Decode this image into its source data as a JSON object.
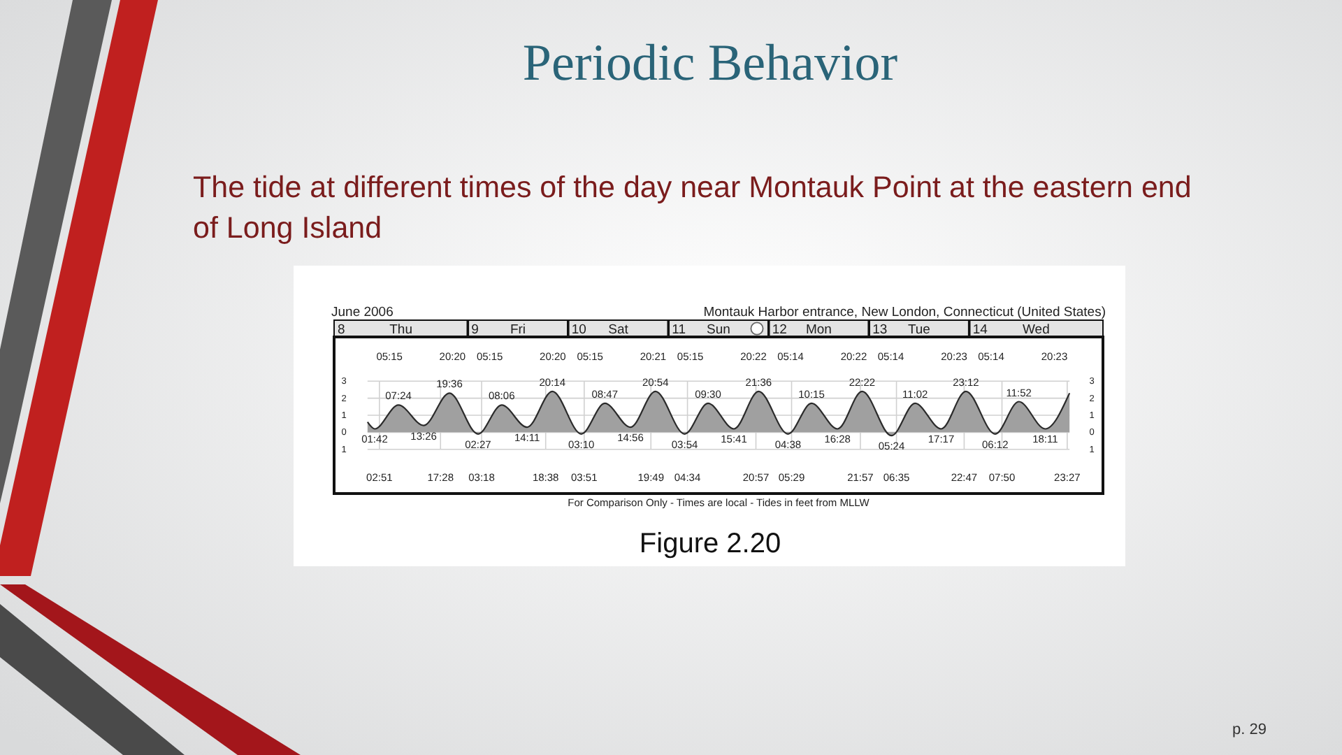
{
  "chart_data": {
    "type": "area",
    "title": "Periodic Behavior",
    "subtitle": "The tide at different times of the day near Montauk Point at the eastern end of Long Island",
    "x": [
      "2006-06-08T00:00",
      "2006-06-08T01:42",
      "2006-06-08T07:24",
      "2006-06-08T13:26",
      "2006-06-08T19:36",
      "2006-06-09T02:27",
      "2006-06-09T08:06",
      "2006-06-09T14:11",
      "2006-06-09T20:14",
      "2006-06-10T03:10",
      "2006-06-10T08:47",
      "2006-06-10T14:56",
      "2006-06-10T20:54",
      "2006-06-11T03:54",
      "2006-06-11T09:30",
      "2006-06-11T15:41",
      "2006-06-11T21:36",
      "2006-06-12T04:38",
      "2006-06-12T10:15",
      "2006-06-12T16:28",
      "2006-06-12T22:22",
      "2006-06-13T05:24",
      "2006-06-13T11:02",
      "2006-06-13T17:17",
      "2006-06-13T23:12",
      "2006-06-14T06:12",
      "2006-06-14T11:52",
      "2006-06-14T18:11",
      "2006-06-15T00:00"
    ],
    "values": [
      0.6,
      0.2,
      1.6,
      0.4,
      2.3,
      -0.1,
      1.6,
      0.3,
      2.4,
      -0.1,
      1.7,
      0.3,
      2.4,
      -0.1,
      1.7,
      0.2,
      2.4,
      -0.1,
      1.7,
      0.2,
      2.4,
      -0.2,
      1.7,
      0.2,
      2.4,
      -0.1,
      1.8,
      0.2,
      2.3
    ],
    "color": "#a0a0a0",
    "xlim": [
      "2006-06-07T16:00",
      "2006-06-15T08:00"
    ],
    "xticks": [
      {
        "value": "2006-06-08T02:51",
        "label": "02:51"
      },
      {
        "value": "2006-06-08T17:28",
        "label": "17:28"
      },
      {
        "value": "2006-06-09T03:18",
        "label": "03:18"
      },
      {
        "value": "2006-06-09T18:38",
        "label": "18:38"
      },
      {
        "value": "2006-06-10T03:51",
        "label": "03:51"
      },
      {
        "value": "2006-06-10T19:49",
        "label": "19:49"
      },
      {
        "value": "2006-06-11T04:34",
        "label": "04:34"
      },
      {
        "value": "2006-06-11T20:57",
        "label": "20:57"
      },
      {
        "value": "2006-06-12T05:29",
        "label": "05:29"
      },
      {
        "value": "2006-06-12T21:57",
        "label": "21:57"
      },
      {
        "value": "2006-06-13T06:35",
        "label": "06:35"
      },
      {
        "value": "2006-06-13T22:47",
        "label": "22:47"
      },
      {
        "value": "2006-06-14T07:50",
        "label": "07:50"
      },
      {
        "value": "2006-06-14T23:27",
        "label": "23:27"
      }
    ],
    "x2lim": [
      "2006-06-07T16:00",
      "2006-06-15T08:00"
    ],
    "x2ticks": [
      {
        "value": "2006-06-08T05:15",
        "label": "05:15"
      },
      {
        "value": "2006-06-08T20:20",
        "label": "20:20"
      },
      {
        "value": "2006-06-09T05:15",
        "label": "05:15"
      },
      {
        "value": "2006-06-09T20:20",
        "label": "20:20"
      },
      {
        "value": "2006-06-10T05:15",
        "label": "05:15"
      },
      {
        "value": "2006-06-10T20:21",
        "label": "20:21"
      },
      {
        "value": "2006-06-11T05:15",
        "label": "05:15"
      },
      {
        "value": "2006-06-11T20:22",
        "label": "20:22"
      },
      {
        "value": "2006-06-12T05:14",
        "label": "05:14"
      },
      {
        "value": "2006-06-12T20:22",
        "label": "20:22"
      },
      {
        "value": "2006-06-13T05:14",
        "label": "05:14"
      },
      {
        "value": "2006-06-13T20:23",
        "label": "20:23"
      },
      {
        "value": "2006-06-14T05:14",
        "label": "05:14"
      },
      {
        "value": "2006-06-14T20:23",
        "label": "20:23"
      }
    ],
    "ylim": [
      -3.6,
      5.6
    ],
    "yticks": [
      {
        "value": -1,
        "label": "1"
      },
      0,
      1,
      2,
      3
    ],
    "y2lim": [
      -3.6,
      5.6
    ],
    "y2ticks": [
      {
        "value": -1,
        "label": "1"
      },
      0,
      1,
      2,
      3
    ],
    "grid": true,
    "annotations": [
      "June 2006",
      "Montauk Harbor entrance, New London, Connecticut (United States)",
      "8",
      "Thu",
      "9",
      "Fri",
      "10",
      "Sat",
      "11",
      "Sun",
      "12",
      "Mon",
      "13",
      "Tue",
      "14",
      "Wed",
      "For Comparison Only - Times are local - Tides in feet from MLLW",
      "Figure 2.20",
      "p. 29",
      {
        "text": "01:42",
        "x": "2006-06-08T01:42",
        "y": 0.2
      },
      {
        "text": "07:24",
        "x": "2006-06-08T07:24",
        "y": 1.6
      },
      {
        "text": "13:26",
        "x": "2006-06-08T13:26",
        "y": 0.4
      },
      {
        "text": "19:36",
        "x": "2006-06-08T19:36",
        "y": 2.3
      },
      {
        "text": "02:27",
        "x": "2006-06-09T02:27",
        "y": -0.1
      },
      {
        "text": "08:06",
        "x": "2006-06-09T08:06",
        "y": 1.6
      },
      {
        "text": "14:11",
        "x": "2006-06-09T14:11",
        "y": 0.3
      },
      {
        "text": "20:14",
        "x": "2006-06-09T20:14",
        "y": 2.4
      },
      {
        "text": "03:10",
        "x": "2006-06-10T03:10",
        "y": -0.1
      },
      {
        "text": "08:47",
        "x": "2006-06-10T08:47",
        "y": 1.7
      },
      {
        "text": "14:56",
        "x": "2006-06-10T14:56",
        "y": 0.3
      },
      {
        "text": "20:54",
        "x": "2006-06-10T20:54",
        "y": 2.4
      },
      {
        "text": "03:54",
        "x": "2006-06-11T03:54",
        "y": -0.1
      },
      {
        "text": "09:30",
        "x": "2006-06-11T09:30",
        "y": 1.7
      },
      {
        "text": "15:41",
        "x": "2006-06-11T15:41",
        "y": 0.2
      },
      {
        "text": "21:36",
        "x": "2006-06-11T21:36",
        "y": 2.4
      },
      {
        "text": "04:38",
        "x": "2006-06-12T04:38",
        "y": -0.1
      },
      {
        "text": "10:15",
        "x": "2006-06-12T10:15",
        "y": 1.7
      },
      {
        "text": "16:28",
        "x": "2006-06-12T16:28",
        "y": 0.2
      },
      {
        "text": "22:22",
        "x": "2006-06-12T22:22",
        "y": 2.4
      },
      {
        "text": "05:24",
        "x": "2006-06-13T05:24",
        "y": -0.2
      },
      {
        "text": "11:02",
        "x": "2006-06-13T11:02",
        "y": 1.7
      },
      {
        "text": "17:17",
        "x": "2006-06-13T17:17",
        "y": 0.2
      },
      {
        "text": "23:12",
        "x": "2006-06-13T23:12",
        "y": 2.4
      },
      {
        "text": "06:12",
        "x": "2006-06-14T06:12",
        "y": -0.1
      },
      {
        "text": "11:52",
        "x": "2006-06-14T11:52",
        "y": 1.8
      },
      {
        "text": "18:11",
        "x": "2006-06-14T18:11",
        "y": 0.2
      }
    ]
  }
}
